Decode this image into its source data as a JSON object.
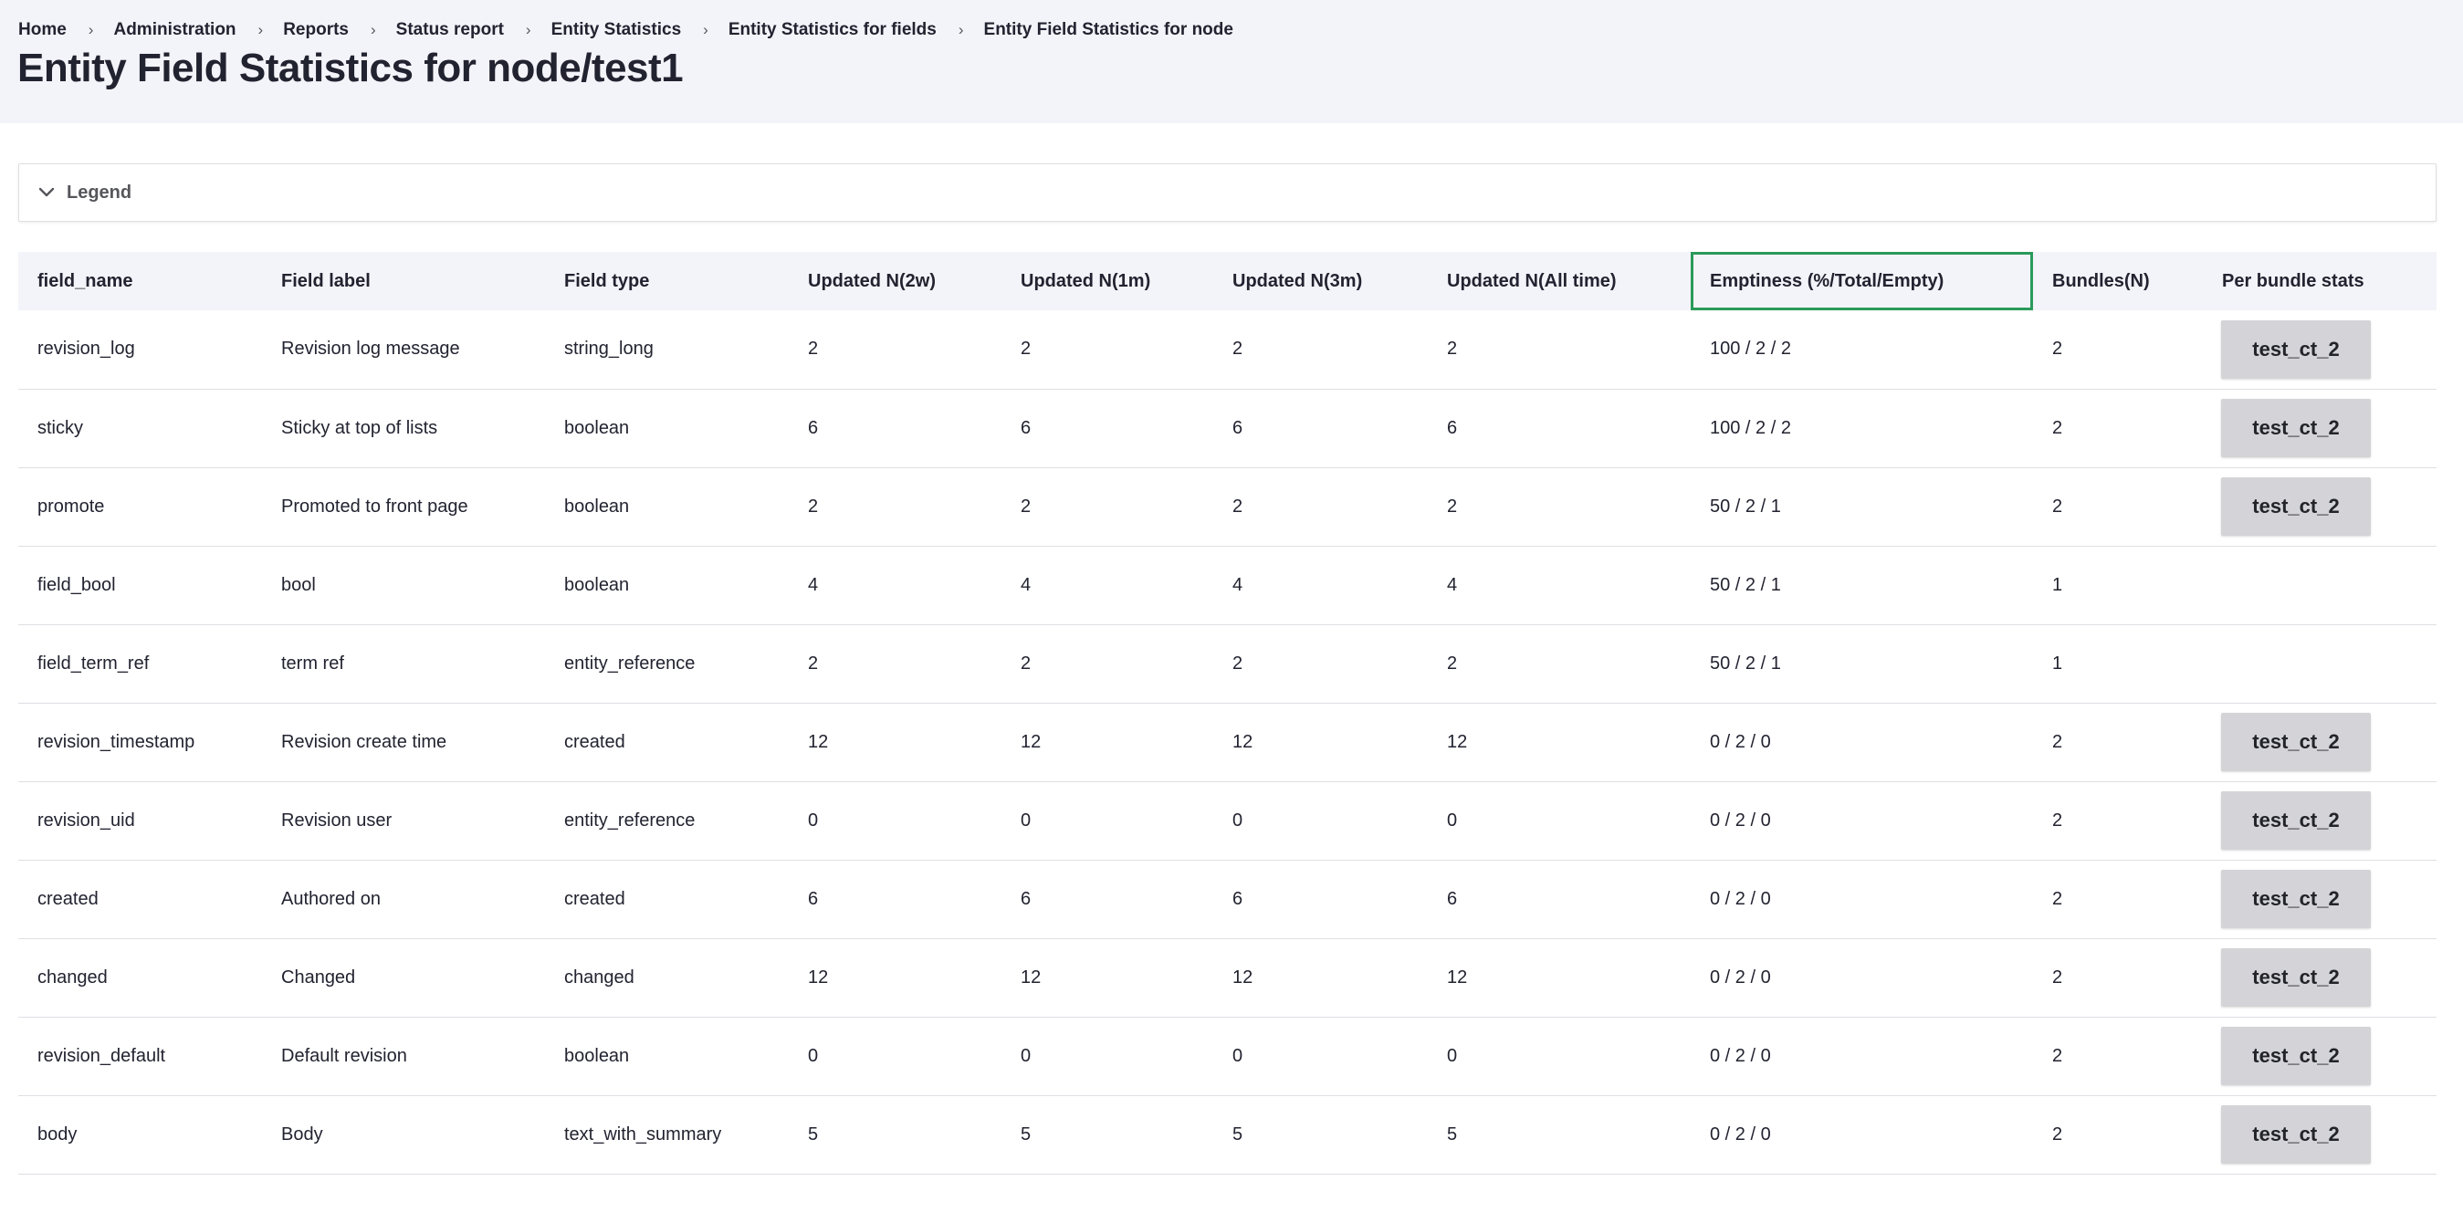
{
  "breadcrumb": {
    "items": [
      "Home",
      "Administration",
      "Reports",
      "Status report",
      "Entity Statistics",
      "Entity Statistics for fields",
      "Entity Field Statistics for node"
    ],
    "separator": "›"
  },
  "page": {
    "title": "Entity Field Statistics for node/test1"
  },
  "legend": {
    "label": "Legend",
    "icon": "chevron-down-icon"
  },
  "table": {
    "active_column": 7,
    "active_outline_color": "#2a9a5a",
    "headers": [
      "field_name",
      "Field label",
      "Field type",
      "Updated N(2w)",
      "Updated N(1m)",
      "Updated N(3m)",
      "Updated N(All time)",
      "Emptiness (%/Total/Empty)",
      "Bundles(N)",
      "Per bundle stats"
    ],
    "rows": [
      {
        "field_name": "revision_log",
        "label": "Revision log message",
        "type": "string_long",
        "u2w": "2",
        "u1m": "2",
        "u3m": "2",
        "uall": "2",
        "emptiness": "100 / 2 / 2",
        "bundles": "2",
        "bundle_button": "test_ct_2"
      },
      {
        "field_name": "sticky",
        "label": "Sticky at top of lists",
        "type": "boolean",
        "u2w": "6",
        "u1m": "6",
        "u3m": "6",
        "uall": "6",
        "emptiness": "100 / 2 / 2",
        "bundles": "2",
        "bundle_button": "test_ct_2"
      },
      {
        "field_name": "promote",
        "label": "Promoted to front page",
        "type": "boolean",
        "u2w": "2",
        "u1m": "2",
        "u3m": "2",
        "uall": "2",
        "emptiness": "50 / 2 / 1",
        "bundles": "2",
        "bundle_button": "test_ct_2"
      },
      {
        "field_name": "field_bool",
        "label": "bool",
        "type": "boolean",
        "u2w": "4",
        "u1m": "4",
        "u3m": "4",
        "uall": "4",
        "emptiness": "50 / 2 / 1",
        "bundles": "1",
        "bundle_button": ""
      },
      {
        "field_name": "field_term_ref",
        "label": "term ref",
        "type": "entity_reference",
        "u2w": "2",
        "u1m": "2",
        "u3m": "2",
        "uall": "2",
        "emptiness": "50 / 2 / 1",
        "bundles": "1",
        "bundle_button": ""
      },
      {
        "field_name": "revision_timestamp",
        "label": "Revision create time",
        "type": "created",
        "u2w": "12",
        "u1m": "12",
        "u3m": "12",
        "uall": "12",
        "emptiness": "0 / 2 / 0",
        "bundles": "2",
        "bundle_button": "test_ct_2"
      },
      {
        "field_name": "revision_uid",
        "label": "Revision user",
        "type": "entity_reference",
        "u2w": "0",
        "u1m": "0",
        "u3m": "0",
        "uall": "0",
        "emptiness": "0 / 2 / 0",
        "bundles": "2",
        "bundle_button": "test_ct_2"
      },
      {
        "field_name": "created",
        "label": "Authored on",
        "type": "created",
        "u2w": "6",
        "u1m": "6",
        "u3m": "6",
        "uall": "6",
        "emptiness": "0 / 2 / 0",
        "bundles": "2",
        "bundle_button": "test_ct_2"
      },
      {
        "field_name": "changed",
        "label": "Changed",
        "type": "changed",
        "u2w": "12",
        "u1m": "12",
        "u3m": "12",
        "uall": "12",
        "emptiness": "0 / 2 / 0",
        "bundles": "2",
        "bundle_button": "test_ct_2"
      },
      {
        "field_name": "revision_default",
        "label": "Default revision",
        "type": "boolean",
        "u2w": "0",
        "u1m": "0",
        "u3m": "0",
        "uall": "0",
        "emptiness": "0 / 2 / 0",
        "bundles": "2",
        "bundle_button": "test_ct_2"
      },
      {
        "field_name": "body",
        "label": "Body",
        "type": "text_with_summary",
        "u2w": "5",
        "u1m": "5",
        "u3m": "5",
        "uall": "5",
        "emptiness": "0 / 2 / 0",
        "bundles": "2",
        "bundle_button": "test_ct_2"
      }
    ]
  }
}
